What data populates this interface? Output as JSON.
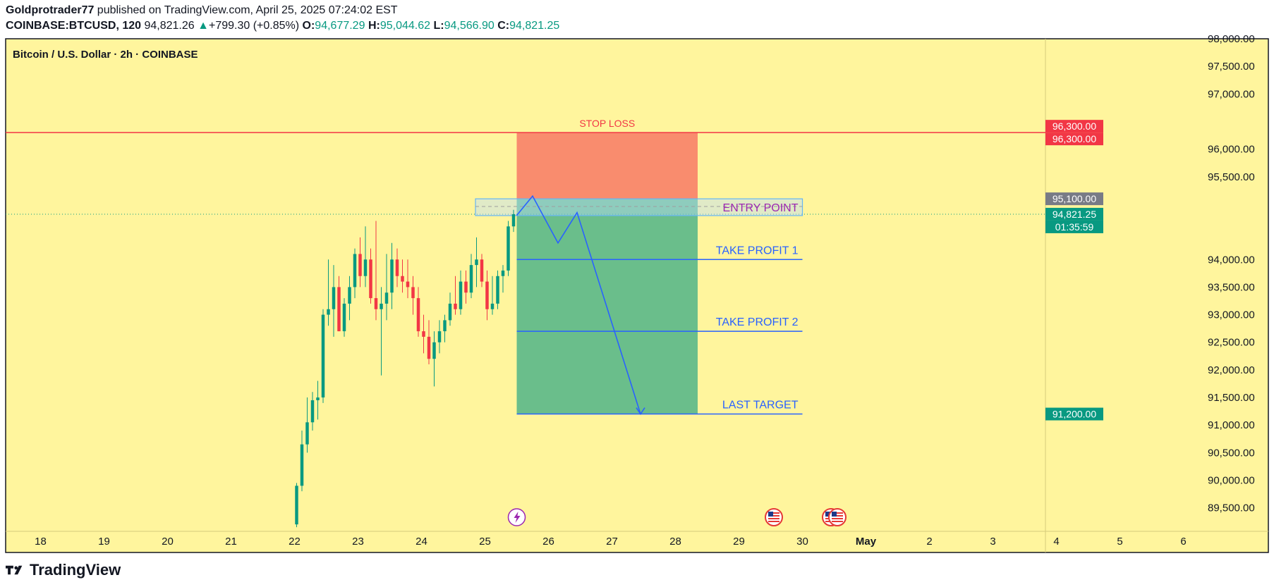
{
  "header": {
    "author": "Goldprotrader77",
    "published_text": " published on TradingView.com, April 25, 2025 07:24:02 EST",
    "symbol": "COINBASE:BTCUSD, 120",
    "last_price": "94,821.26",
    "change": "+799.30 (+0.85%)",
    "open_label": "O:",
    "open_value": "94,677.29",
    "high_label": "H:",
    "high_value": "95,044.62",
    "low_label": "L:",
    "low_value": "94,566.90",
    "close_label": "C:",
    "close_value": "94,821.25"
  },
  "footer": {
    "brand": "TradingView"
  },
  "colors": {
    "background": "#fff59d",
    "up": "#089981",
    "down": "#f23645",
    "stop_zone": "#f98c6e",
    "profit_zone": "#6abe8b",
    "target_line": "#2962ff",
    "stop_line": "#f23645",
    "entry_text": "#9c27b0"
  },
  "chart_data": {
    "type": "candlestick",
    "title": "Bitcoin / U.S. Dollar · 2h · COINBASE",
    "ylim": [
      89100,
      98000
    ],
    "x_date_range": [
      17.45,
      6.85
    ],
    "x_ticks": [
      "18",
      "19",
      "20",
      "21",
      "22",
      "23",
      "24",
      "25",
      "26",
      "27",
      "28",
      "29",
      "30",
      "May",
      "2",
      "3",
      "4",
      "5",
      "6"
    ],
    "y_ticks": [
      "98,000.00",
      "97,500.00",
      "97,000.00",
      "96,000.00",
      "95,500.00",
      "94,000.00",
      "93,500.00",
      "93,000.00",
      "92,500.00",
      "92,000.00",
      "91,500.00",
      "91,000.00",
      "90,500.00",
      "90,000.00",
      "89,500.00"
    ],
    "price_badges": [
      {
        "label": "96,300.00",
        "price": 96300,
        "color": "#f23645"
      },
      {
        "label": "96,300.00",
        "price": 96300,
        "color": "#f23645"
      },
      {
        "label": "95,100.00",
        "price": 95100,
        "color": "#787b86"
      },
      {
        "label": "94,821.25",
        "price": 94821.25,
        "color": "#089981"
      },
      {
        "label": "01:35:59",
        "price": 94821.25,
        "color": "#089981"
      },
      {
        "label": "91,200.00",
        "price": 91200,
        "color": "#089981"
      }
    ],
    "candles": [
      {
        "o": 89200,
        "h": 89950,
        "l": 89150,
        "c": 89900
      },
      {
        "o": 89900,
        "h": 90900,
        "l": 89800,
        "c": 90650
      },
      {
        "o": 90650,
        "h": 91500,
        "l": 90500,
        "c": 91050
      },
      {
        "o": 91050,
        "h": 91600,
        "l": 90900,
        "c": 91450
      },
      {
        "o": 91450,
        "h": 91800,
        "l": 91100,
        "c": 91500
      },
      {
        "o": 91500,
        "h": 93100,
        "l": 91400,
        "c": 93000
      },
      {
        "o": 93000,
        "h": 94000,
        "l": 92800,
        "c": 93100
      },
      {
        "o": 93100,
        "h": 93900,
        "l": 92600,
        "c": 93500
      },
      {
        "o": 93500,
        "h": 93700,
        "l": 92700,
        "c": 92700
      },
      {
        "o": 92700,
        "h": 93300,
        "l": 92600,
        "c": 93200
      },
      {
        "o": 93200,
        "h": 93700,
        "l": 92900,
        "c": 93500
      },
      {
        "o": 93500,
        "h": 94200,
        "l": 93300,
        "c": 94100
      },
      {
        "o": 94100,
        "h": 94400,
        "l": 93500,
        "c": 93700
      },
      {
        "o": 93700,
        "h": 94600,
        "l": 93500,
        "c": 94000
      },
      {
        "o": 94000,
        "h": 94200,
        "l": 93200,
        "c": 93300
      },
      {
        "o": 93300,
        "h": 94700,
        "l": 92900,
        "c": 93100
      },
      {
        "o": 93100,
        "h": 93500,
        "l": 91900,
        "c": 93200
      },
      {
        "o": 93200,
        "h": 94100,
        "l": 92900,
        "c": 93400
      },
      {
        "o": 93400,
        "h": 94300,
        "l": 93100,
        "c": 94000
      },
      {
        "o": 94000,
        "h": 94200,
        "l": 93500,
        "c": 93700
      },
      {
        "o": 93700,
        "h": 94000,
        "l": 93400,
        "c": 93600
      },
      {
        "o": 93600,
        "h": 94000,
        "l": 93300,
        "c": 93500
      },
      {
        "o": 93500,
        "h": 93700,
        "l": 93000,
        "c": 93300
      },
      {
        "o": 93300,
        "h": 93500,
        "l": 92600,
        "c": 92700
      },
      {
        "o": 92700,
        "h": 93000,
        "l": 92300,
        "c": 92600
      },
      {
        "o": 92600,
        "h": 92900,
        "l": 92100,
        "c": 92200
      },
      {
        "o": 92200,
        "h": 92700,
        "l": 91700,
        "c": 92500
      },
      {
        "o": 92500,
        "h": 92900,
        "l": 92300,
        "c": 92700
      },
      {
        "o": 92700,
        "h": 93000,
        "l": 92500,
        "c": 92900
      },
      {
        "o": 92900,
        "h": 93400,
        "l": 92800,
        "c": 93200
      },
      {
        "o": 93200,
        "h": 93700,
        "l": 93000,
        "c": 93100
      },
      {
        "o": 93100,
        "h": 93800,
        "l": 93000,
        "c": 93600
      },
      {
        "o": 93600,
        "h": 93800,
        "l": 93200,
        "c": 93400
      },
      {
        "o": 93400,
        "h": 94100,
        "l": 93300,
        "c": 93900
      },
      {
        "o": 93900,
        "h": 94400,
        "l": 93500,
        "c": 94000
      },
      {
        "o": 94000,
        "h": 94100,
        "l": 93500,
        "c": 93600
      },
      {
        "o": 93600,
        "h": 93800,
        "l": 92900,
        "c": 93100
      },
      {
        "o": 93100,
        "h": 93700,
        "l": 93000,
        "c": 93200
      },
      {
        "o": 93200,
        "h": 93800,
        "l": 93100,
        "c": 93700
      },
      {
        "o": 93700,
        "h": 93900,
        "l": 93400,
        "c": 93800
      },
      {
        "o": 93800,
        "h": 94700,
        "l": 93700,
        "c": 94600
      },
      {
        "o": 94600,
        "h": 94900,
        "l": 94500,
        "c": 94821.25
      }
    ],
    "annotations": {
      "stop_loss": {
        "label": "STOP LOSS",
        "price": 96300
      },
      "entry_point": {
        "label": "ENTRY POINT",
        "price": 95100,
        "price_bottom": 94821.25
      },
      "take_profit_1": {
        "label": "TAKE PROFIT 1",
        "price": 94000
      },
      "take_profit_2": {
        "label": "TAKE PROFIT 2",
        "price": 92700
      },
      "last_target": {
        "label": "LAST TARGET",
        "price": 91200
      }
    },
    "projection_path": [
      {
        "d": 25.5,
        "p": 94800
      },
      {
        "d": 25.75,
        "p": 95150
      },
      {
        "d": 26.15,
        "p": 94300
      },
      {
        "d": 26.45,
        "p": 94850
      },
      {
        "d": 27.45,
        "p": 91200
      }
    ]
  }
}
